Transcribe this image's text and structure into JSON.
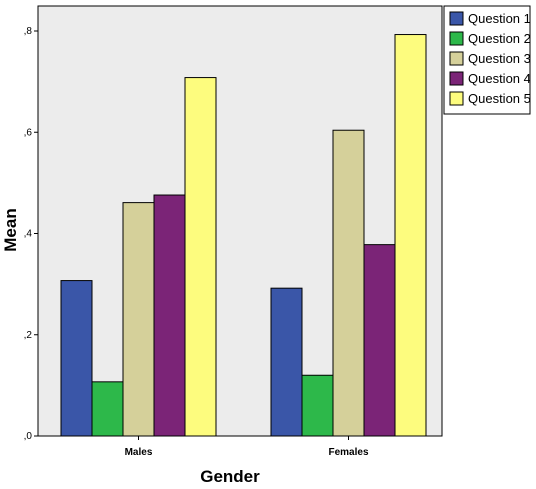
{
  "chart_data": {
    "type": "bar",
    "xlabel": "Gender",
    "ylabel": "Mean",
    "categories": [
      "Males",
      "Females"
    ],
    "ylim": [
      0,
      0.8
    ],
    "yticks": [
      {
        "value": 0,
        "label": ",0"
      },
      {
        "value": 0.2,
        "label": ",2"
      },
      {
        "value": 0.4,
        "label": ",4"
      },
      {
        "value": 0.6,
        "label": ",6"
      },
      {
        "value": 0.8,
        "label": ",8"
      }
    ],
    "series": [
      {
        "name": "Question 1",
        "color": "#3a56a8",
        "values": [
          0.307,
          0.292
        ]
      },
      {
        "name": "Question 2",
        "color": "#2db84a",
        "values": [
          0.107,
          0.12
        ]
      },
      {
        "name": "Question 3",
        "color": "#d5d09a",
        "values": [
          0.461,
          0.604
        ]
      },
      {
        "name": "Question 4",
        "color": "#7b2477",
        "values": [
          0.476,
          0.378
        ]
      },
      {
        "name": "Question 5",
        "color": "#fdfc7e",
        "values": [
          0.708,
          0.793
        ]
      }
    ],
    "legend_position": "top-right",
    "plot_background": "#ececec"
  }
}
